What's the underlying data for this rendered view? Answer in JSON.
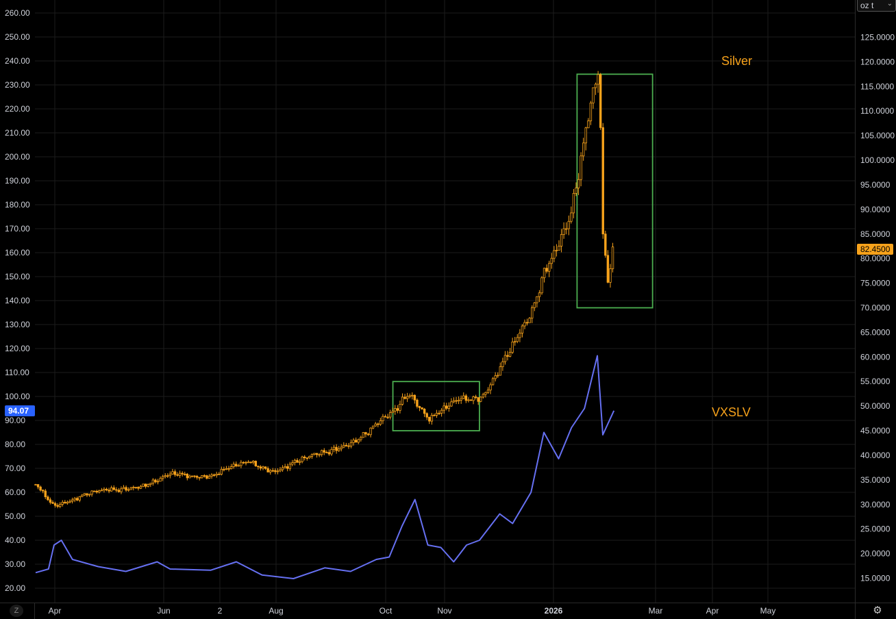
{
  "colors": {
    "background": "#000000",
    "grid": "#1c1c1c",
    "silver": "#f7a21b",
    "vxslv": "#6670f2",
    "box": "#4caf50",
    "axis_text": "#d1d4dc",
    "left_badge": "#2962ff",
    "right_badge": "#f7a21b"
  },
  "controls": {
    "unit_label": "oz t",
    "unit_icon": "chevron-down-icon",
    "z_label": "Z",
    "settings_icon": "gear-icon"
  },
  "chart_data": {
    "type": "line",
    "x_ticks": [
      "Apr",
      "Jun",
      "2",
      "Aug",
      "Oct",
      "Nov",
      "2026",
      "Mar",
      "Apr",
      "May"
    ],
    "left_axis": {
      "ticks": [
        "260.00",
        "250.00",
        "240.00",
        "230.00",
        "220.00",
        "210.00",
        "200.00",
        "190.00",
        "180.00",
        "170.00",
        "160.00",
        "150.00",
        "140.00",
        "130.00",
        "120.00",
        "110.00",
        "100.00",
        "90.00",
        "80.00",
        "70.00",
        "60.00",
        "50.00",
        "40.00",
        "30.00",
        "20.00"
      ],
      "range": [
        15,
        263
      ],
      "last_value_badge": "94.07"
    },
    "right_axis": {
      "ticks": [
        "125.0000",
        "120.0000",
        "115.0000",
        "110.0000",
        "105.0000",
        "100.0000",
        "95.0000",
        "90.0000",
        "85.0000",
        "80.0000",
        "75.0000",
        "70.0000",
        "65.0000",
        "60.0000",
        "55.0000",
        "50.0000",
        "45.0000",
        "40.0000",
        "35.0000",
        "30.0000",
        "25.0000",
        "20.0000",
        "15.0000"
      ],
      "range": [
        12.0,
        129.5
      ],
      "last_value_badge": "82.4500"
    },
    "annotations": [
      "Silver",
      "VXSLV"
    ],
    "series": [
      {
        "name": "Silver",
        "axis": "right",
        "style": "candlestick",
        "date_range": [
          "2025-03-28",
          "2026-02-05"
        ],
        "approx_closes": [
          {
            "date": "2025-03-28",
            "value": 34.0
          },
          {
            "date": "2025-04-07",
            "value": 30.0
          },
          {
            "date": "2025-05-01",
            "value": 32.5
          },
          {
            "date": "2025-06-02",
            "value": 34.5
          },
          {
            "date": "2025-06-09",
            "value": 36.0
          },
          {
            "date": "2025-07-01",
            "value": 36.0
          },
          {
            "date": "2025-07-22",
            "value": 38.5
          },
          {
            "date": "2025-08-04",
            "value": 37.0
          },
          {
            "date": "2025-09-01",
            "value": 40.5
          },
          {
            "date": "2025-09-22",
            "value": 44.0
          },
          {
            "date": "2025-10-08",
            "value": 48.5
          },
          {
            "date": "2025-10-17",
            "value": 53.0
          },
          {
            "date": "2025-10-28",
            "value": 47.5
          },
          {
            "date": "2025-11-13",
            "value": 51.0
          },
          {
            "date": "2025-11-25",
            "value": 52.0
          },
          {
            "date": "2025-12-05",
            "value": 58.0
          },
          {
            "date": "2025-12-22",
            "value": 68.0
          },
          {
            "date": "2025-12-29",
            "value": 77.0
          },
          {
            "date": "2026-01-13",
            "value": 90.0
          },
          {
            "date": "2026-01-22",
            "value": 108.0
          },
          {
            "date": "2026-01-28",
            "value": 118.0
          },
          {
            "date": "2026-01-30",
            "value": 84.0
          },
          {
            "date": "2026-02-02",
            "value": 75.0
          },
          {
            "date": "2026-02-05",
            "value": 82.45
          }
        ]
      },
      {
        "name": "VXSLV",
        "axis": "left",
        "style": "line",
        "points": [
          {
            "date": "2025-03-28",
            "value": 26.5
          },
          {
            "date": "2025-04-04",
            "value": 28.0
          },
          {
            "date": "2025-04-07",
            "value": 38.0
          },
          {
            "date": "2025-04-11",
            "value": 40.0
          },
          {
            "date": "2025-04-17",
            "value": 32.0
          },
          {
            "date": "2025-05-01",
            "value": 29.0
          },
          {
            "date": "2025-05-16",
            "value": 27.0
          },
          {
            "date": "2025-06-02",
            "value": 31.0
          },
          {
            "date": "2025-06-09",
            "value": 28.0
          },
          {
            "date": "2025-07-01",
            "value": 27.5
          },
          {
            "date": "2025-07-15",
            "value": 31.0
          },
          {
            "date": "2025-07-29",
            "value": 25.5
          },
          {
            "date": "2025-08-15",
            "value": 24.0
          },
          {
            "date": "2025-09-01",
            "value": 28.5
          },
          {
            "date": "2025-09-15",
            "value": 27.0
          },
          {
            "date": "2025-09-29",
            "value": 32.0
          },
          {
            "date": "2025-10-06",
            "value": 33.0
          },
          {
            "date": "2025-10-13",
            "value": 46.0
          },
          {
            "date": "2025-10-20",
            "value": 57.0
          },
          {
            "date": "2025-10-27",
            "value": 38.0
          },
          {
            "date": "2025-11-03",
            "value": 37.0
          },
          {
            "date": "2025-11-10",
            "value": 31.0
          },
          {
            "date": "2025-11-17",
            "value": 38.0
          },
          {
            "date": "2025-11-24",
            "value": 40.0
          },
          {
            "date": "2025-12-05",
            "value": 51.0
          },
          {
            "date": "2025-12-12",
            "value": 47.0
          },
          {
            "date": "2025-12-22",
            "value": 60.0
          },
          {
            "date": "2025-12-29",
            "value": 85.0
          },
          {
            "date": "2026-01-06",
            "value": 74.0
          },
          {
            "date": "2026-01-13",
            "value": 87.0
          },
          {
            "date": "2026-01-20",
            "value": 95.0
          },
          {
            "date": "2026-01-27",
            "value": 117.0
          },
          {
            "date": "2026-01-30",
            "value": 84.0
          },
          {
            "date": "2026-02-05",
            "value": 94.07
          }
        ]
      }
    ],
    "boxes": [
      {
        "series": "Silver",
        "from": "2025-10-08",
        "to": "2025-11-24",
        "low": 45.0,
        "high": 55.0
      },
      {
        "series": "Silver",
        "from": "2026-01-16",
        "to": "2026-02-26",
        "low": 70.0,
        "high": 117.5
      }
    ],
    "grid": true
  }
}
